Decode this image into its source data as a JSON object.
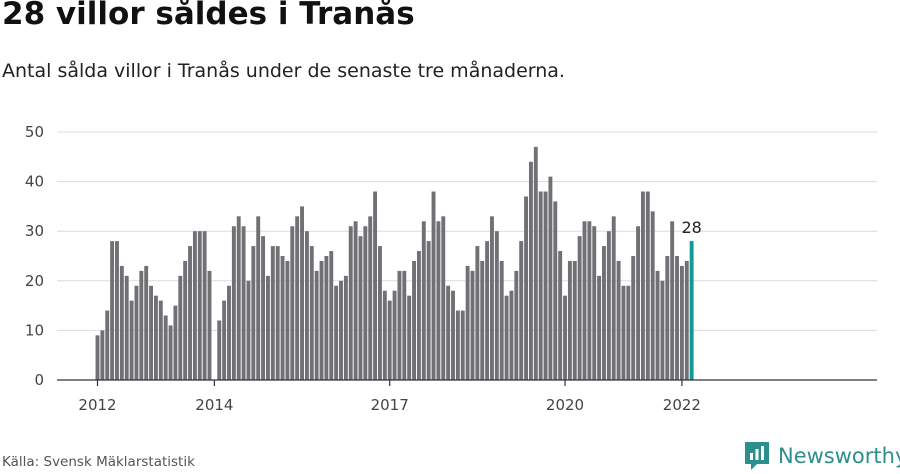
{
  "title": "28 villor såldes i Tranås",
  "subtitle": "Antal sålda villor i Tranås under de senaste tre månaderna.",
  "source": "Källa: Svensk Mäklarstatistik",
  "brand": {
    "name": "Newsworthy",
    "icon": "newsworthy-logo-icon"
  },
  "colors": {
    "bar": "#707075",
    "highlight": "#139993",
    "grid": "#dcdcdc",
    "axis": "#333333"
  },
  "chart_data": {
    "type": "bar",
    "title": "28 villor såldes i Tranås",
    "xlabel": "",
    "ylabel": "",
    "ylim": [
      0,
      50
    ],
    "yticks": [
      0,
      10,
      20,
      30,
      40,
      50
    ],
    "xticks": [
      {
        "label": "2012",
        "index": 0
      },
      {
        "label": "2014",
        "index": 24
      },
      {
        "label": "2017",
        "index": 60
      },
      {
        "label": "2020",
        "index": 96
      },
      {
        "label": "2022",
        "index": 120
      }
    ],
    "start": "2012-01",
    "values": [
      9,
      10,
      14,
      28,
      28,
      23,
      21,
      16,
      19,
      22,
      23,
      19,
      17,
      16,
      13,
      11,
      15,
      21,
      24,
      27,
      30,
      30,
      30,
      22,
      0,
      12,
      16,
      19,
      31,
      33,
      31,
      20,
      27,
      33,
      29,
      21,
      27,
      27,
      25,
      24,
      31,
      33,
      35,
      30,
      27,
      22,
      24,
      25,
      26,
      19,
      20,
      21,
      31,
      32,
      29,
      31,
      33,
      38,
      27,
      18,
      16,
      18,
      22,
      22,
      17,
      24,
      26,
      32,
      28,
      38,
      32,
      33,
      19,
      18,
      14,
      14,
      23,
      22,
      27,
      24,
      28,
      33,
      30,
      24,
      17,
      18,
      22,
      28,
      37,
      44,
      47,
      38,
      38,
      41,
      36,
      26,
      17,
      24,
      24,
      29,
      32,
      32,
      31,
      21,
      27,
      30,
      33,
      24,
      19,
      19,
      25,
      31,
      38,
      38,
      34,
      22,
      20,
      25,
      32,
      25,
      23,
      24,
      28
    ],
    "highlight_index": 122,
    "highlight_label": "28"
  }
}
